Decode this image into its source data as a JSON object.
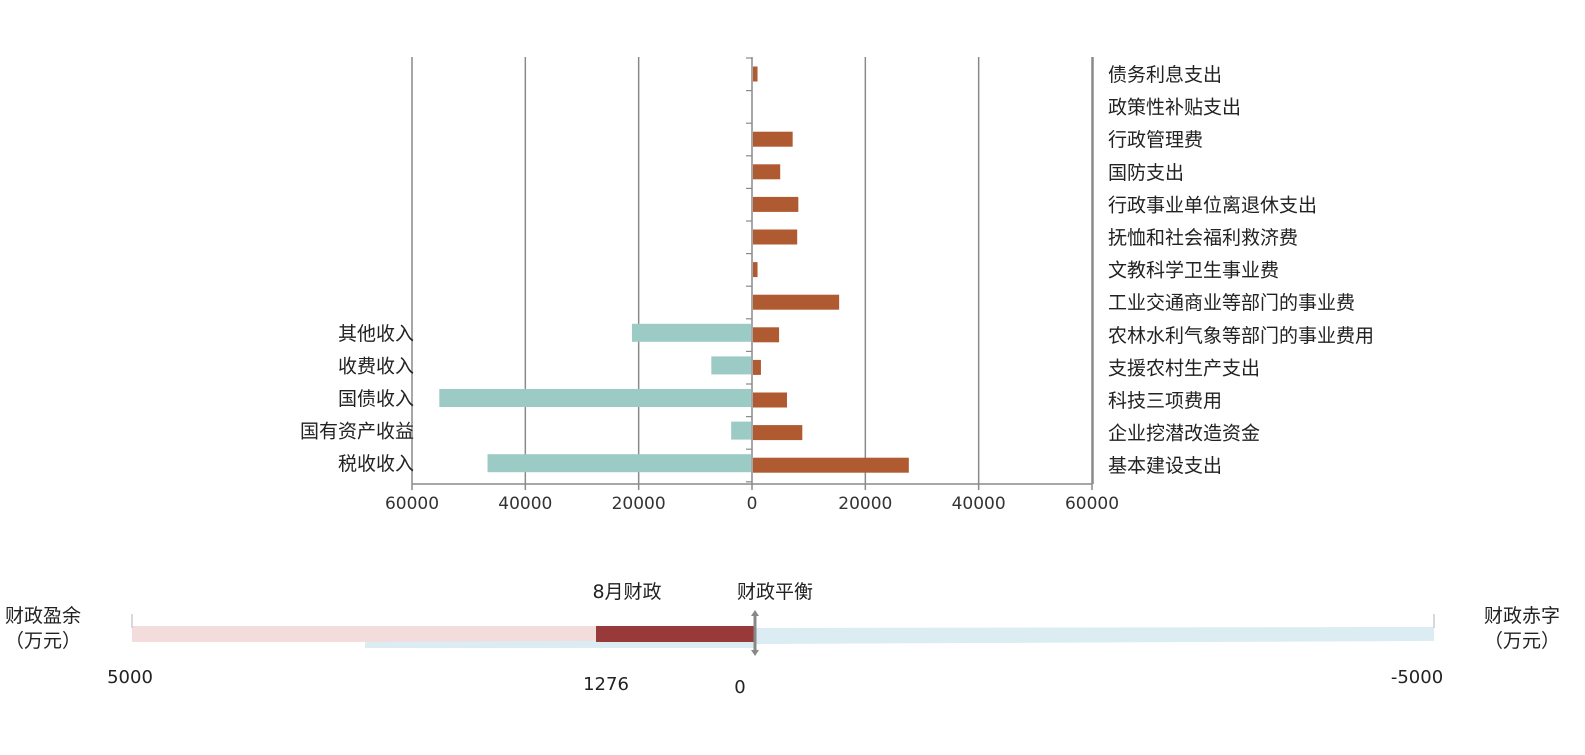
{
  "chart_data": [
    {
      "type": "bar",
      "orientation": "horizontal",
      "xlim": [
        -60000,
        60000
      ],
      "ticks": [
        60000,
        40000,
        20000,
        0,
        20000,
        40000,
        60000
      ],
      "grid": true,
      "series": [
        {
          "name": "",
          "color": "#9ccbc5",
          "side": "left",
          "categories": [
            "其他收入",
            "收费收入",
            "国债收入",
            "国有资产收益",
            "税收收入"
          ],
          "values": [
            21000,
            7000,
            55000,
            3500,
            46500
          ]
        },
        {
          "name": "",
          "color": "#b05a32",
          "side": "right",
          "categories": [
            "债务利息支出",
            "政策性补贴支出",
            "行政管理费",
            "国防支出",
            "行政事业单位离退休支出",
            "抚恤和社会福利救济费",
            "文教科学卫生事业费",
            "工业交通商业等部门的事业费",
            "农林水利气象等部门的事业费用",
            "支援农村生产支出",
            "科技三项费用",
            "企业挖潜改造资金",
            "基本建设支出"
          ],
          "values": [
            800,
            0,
            7000,
            4800,
            8000,
            7800,
            800,
            15200,
            4600,
            1400,
            6000,
            8700,
            27500
          ]
        }
      ]
    },
    {
      "type": "gauge",
      "labels": {
        "left_title": "财政盈余",
        "left_unit": "（万元）",
        "right_title": "财政赤字",
        "right_unit": "（万元）",
        "marker_label": "8月财政",
        "balance_label": "财政平衡"
      },
      "range": [
        5000,
        -5000
      ],
      "range_labels": {
        "left": "5000",
        "right": "-5000",
        "zero": "0"
      },
      "value": 1276,
      "value_label": "1276",
      "colors": {
        "surplus_track": "#f2dcdc",
        "deficit_track": "#dcecf3",
        "value_bar": "#983a3a",
        "axis": "#888888"
      }
    }
  ]
}
